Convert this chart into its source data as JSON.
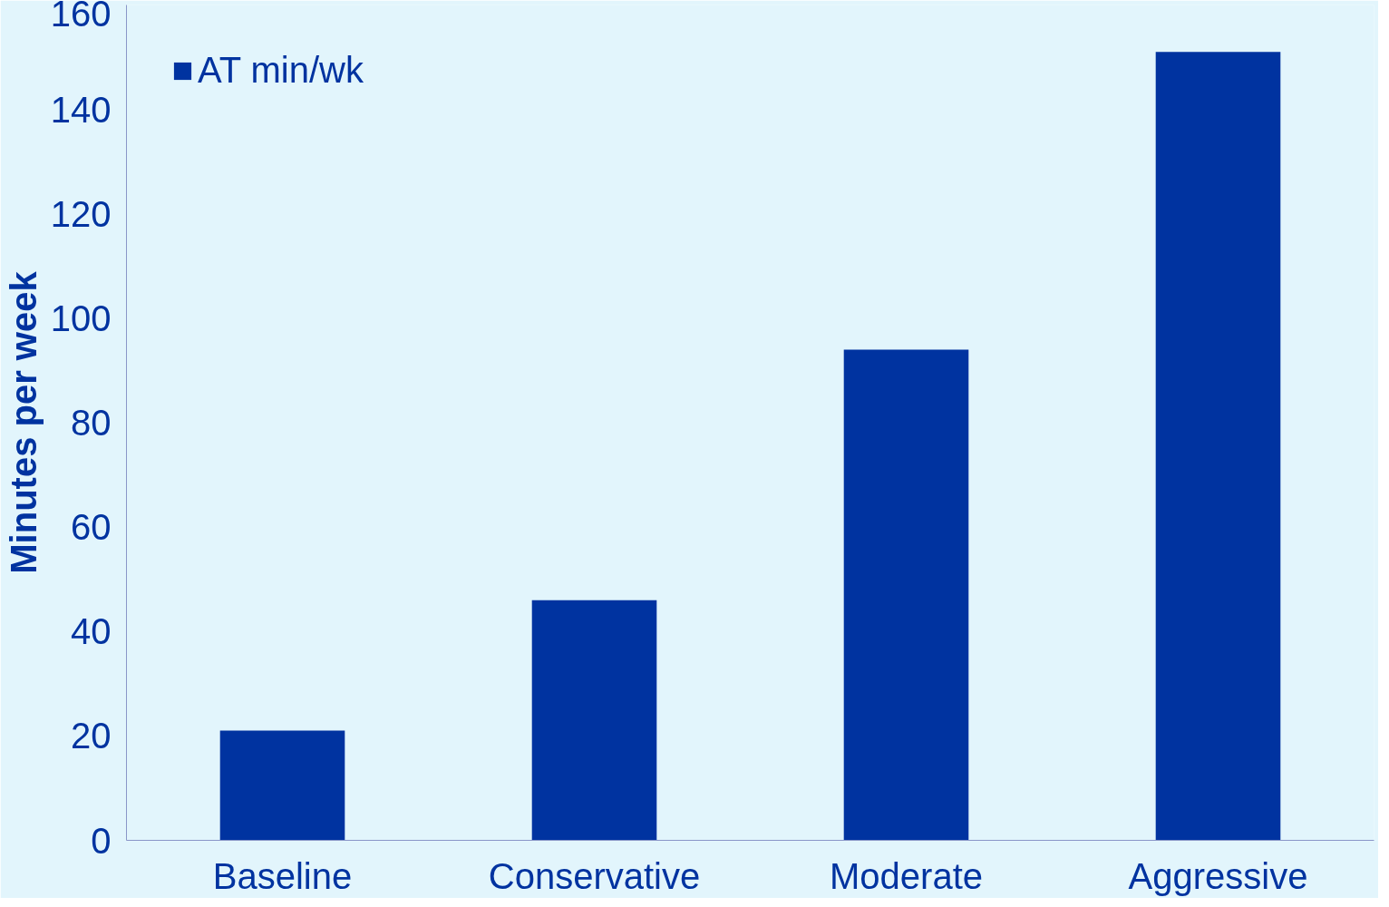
{
  "chart_data": {
    "type": "bar",
    "ylabel": "Minutes per week",
    "categories": [
      "Baseline",
      "Conservative",
      "Moderate",
      "Aggressive"
    ],
    "series": [
      {
        "name": "AT min/wk",
        "color": "#0033a0",
        "values": [
          21,
          46,
          94,
          151
        ]
      }
    ],
    "ylim": [
      0,
      160
    ],
    "yticks": [
      0,
      20,
      40,
      60,
      80,
      100,
      120,
      140,
      160
    ],
    "grid": false,
    "legend": "top left"
  }
}
